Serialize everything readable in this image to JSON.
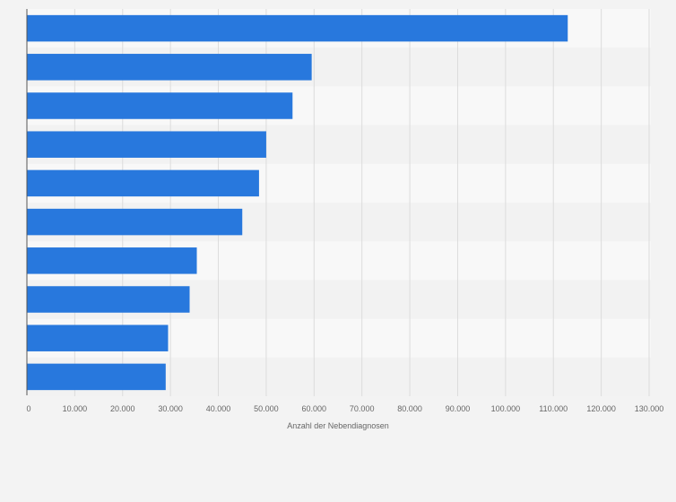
{
  "chart_data": {
    "type": "bar",
    "orientation": "horizontal",
    "title": "",
    "xlabel": "Anzahl der Nebendiagnosen",
    "ylabel": "",
    "categories": [
      "",
      "",
      "",
      "",
      "",
      "",
      "",
      "",
      "",
      ""
    ],
    "values": [
      113000,
      59500,
      55500,
      50000,
      48500,
      45000,
      35500,
      34000,
      29500,
      29000
    ],
    "xlim": [
      0,
      130000
    ],
    "x_ticks": [
      "0",
      "10.000",
      "20.000",
      "30.000",
      "40.000",
      "50.000",
      "60.000",
      "70.000",
      "80.000",
      "90.000",
      "100.000",
      "110.000",
      "120.000",
      "130.000"
    ],
    "grid": true,
    "legend": "none",
    "colors": {
      "bar": "#2878dd",
      "background": "#f3f3f3",
      "band_light": "#f8f8f8",
      "band_dark": "#f2f2f2",
      "grid": "#dcdcdc",
      "axis": "#555555",
      "text": "#666666"
    }
  }
}
